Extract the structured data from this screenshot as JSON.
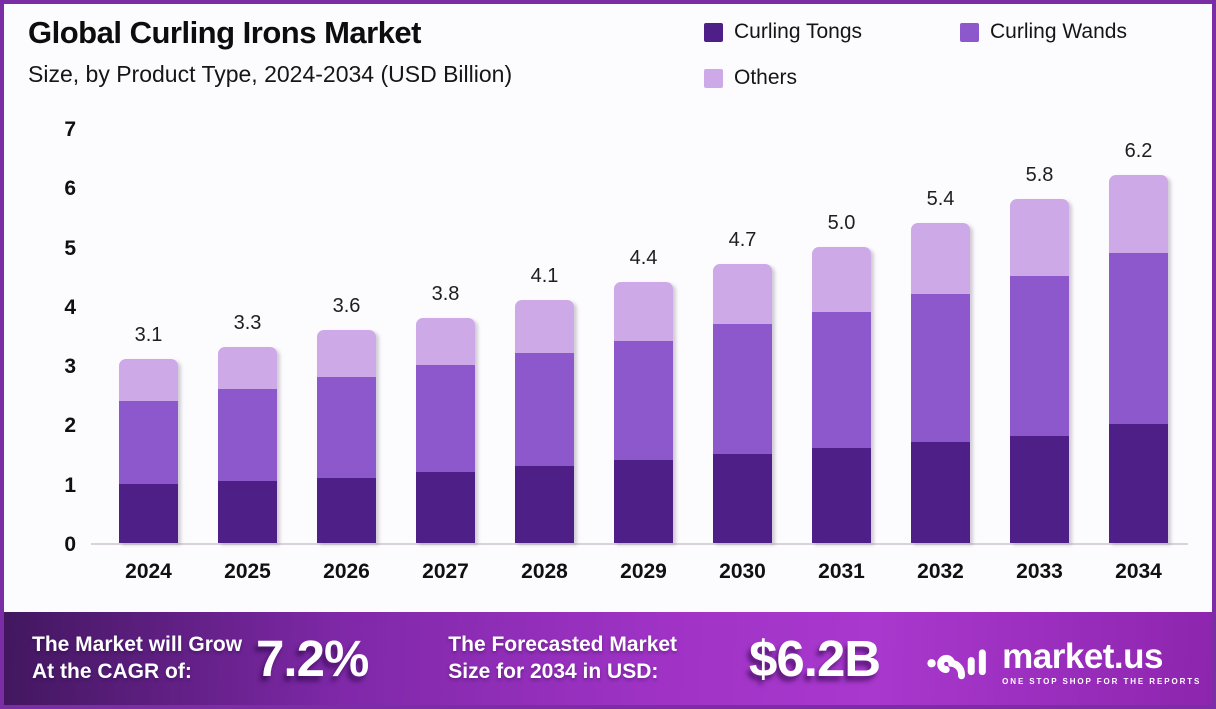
{
  "header": {
    "title": "Global Curling Irons Market",
    "subtitle": "Size, by Product Type, 2024-2034 (USD Billion)"
  },
  "chart_data": {
    "type": "bar",
    "stacked": true,
    "title": "Global Curling Irons Market Size, by Product Type, 2024-2034 (USD Billion)",
    "categories": [
      "2024",
      "2025",
      "2026",
      "2027",
      "2028",
      "2029",
      "2030",
      "2031",
      "2032",
      "2033",
      "2034"
    ],
    "series": [
      {
        "name": "Curling Tongs",
        "color": "#4e2087",
        "values": [
          1.0,
          1.05,
          1.1,
          1.2,
          1.3,
          1.4,
          1.5,
          1.6,
          1.7,
          1.8,
          2.0
        ]
      },
      {
        "name": "Curling Wands",
        "color": "#8c58cc",
        "values": [
          1.4,
          1.55,
          1.7,
          1.8,
          1.9,
          2.0,
          2.2,
          2.3,
          2.5,
          2.7,
          2.9
        ]
      },
      {
        "name": "Others",
        "color": "#cda9e8",
        "values": [
          0.7,
          0.7,
          0.8,
          0.8,
          0.9,
          1.0,
          1.0,
          1.1,
          1.2,
          1.3,
          1.3
        ]
      }
    ],
    "totals": [
      3.1,
      3.3,
      3.6,
      3.8,
      4.1,
      4.4,
      4.7,
      5.0,
      5.4,
      5.8,
      6.2
    ],
    "total_labels": [
      "3.1",
      "3.3",
      "3.6",
      "3.8",
      "4.1",
      "4.4",
      "4.7",
      "5.0",
      "5.4",
      "5.8",
      "6.2"
    ],
    "ylabel": "",
    "xlabel": "",
    "ylim": [
      0,
      7
    ],
    "yticks": [
      0,
      1,
      2,
      3,
      4,
      5,
      6,
      7
    ],
    "grid": false,
    "legend_position": "top-right"
  },
  "banner": {
    "cagr_label_line1": "The Market will Grow",
    "cagr_label_line2": "At the CAGR of:",
    "cagr_value": "7.2%",
    "forecast_label_line1": "The Forecasted Market",
    "forecast_label_line2": "Size for 2034 in USD:",
    "forecast_value": "$6.2B",
    "logo_text": "market.us",
    "logo_tagline": "ONE STOP SHOP FOR THE REPORTS"
  },
  "colors": {
    "frame_border": "#7a2da5",
    "background": "#fcfbfd",
    "axis_line": "#d8d3da",
    "banner_gradient_start": "#42175f",
    "banner_gradient_mid": "#a033c6",
    "banner_gradient_end": "#8d25ae"
  }
}
